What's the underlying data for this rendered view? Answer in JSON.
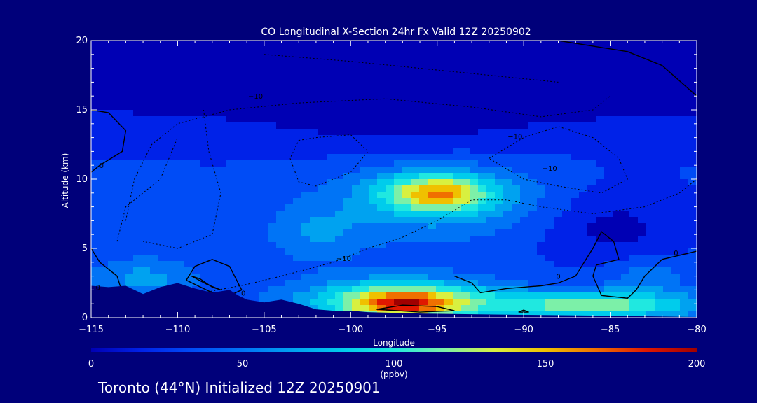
{
  "chart_data": {
    "type": "heatmap",
    "title": "CO Longitudinal X-Section 24hr  Fx Valid 12Z 20250902",
    "xlabel": "Longitude",
    "ylabel": "Altitude (km)",
    "xlim": [
      -115,
      -80
    ],
    "ylim": [
      0,
      20
    ],
    "x_ticks": [
      -115,
      -110,
      -105,
      -100,
      -95,
      -90,
      -85,
      -80
    ],
    "y_ticks": [
      0,
      5,
      10,
      15,
      20
    ],
    "x_tick_labels": [
      "−115",
      "−110",
      "−105",
      "−100",
      "−95",
      "−90",
      "−85",
      "−80"
    ],
    "y_tick_labels": [
      "0",
      "5",
      "10",
      "15",
      "20"
    ],
    "colorbar": {
      "min": 0,
      "max": 200,
      "ticks": [
        0,
        50,
        100,
        150,
        200
      ],
      "tick_labels": [
        "0",
        "50",
        "100",
        "150",
        "200"
      ],
      "unit": "(ppbv)"
    },
    "palette": [
      "#0000b4",
      "#0022e8",
      "#004cf6",
      "#0074f6",
      "#00a2f0",
      "#00ccec",
      "#20e8e0",
      "#7cf0a8",
      "#d8f040",
      "#f0c000",
      "#f07000",
      "#e01800",
      "#a00000"
    ],
    "field_blobs": [
      {
        "lon": -95,
        "alt": 9.0,
        "value": 95,
        "rx": 3.0,
        "ry": 1.3
      },
      {
        "lon": -95,
        "alt": 8.5,
        "value": 45,
        "rx": 6.5,
        "ry": 2.8
      },
      {
        "lon": -102,
        "alt": 6.0,
        "value": 28,
        "rx": 3.0,
        "ry": 2.0
      },
      {
        "lon": -97,
        "alt": 1.2,
        "value": 100,
        "rx": 5.5,
        "ry": 1.6
      },
      {
        "lon": -97,
        "alt": 1.0,
        "value": 65,
        "rx": 2.8,
        "ry": 0.9
      },
      {
        "lon": -86,
        "alt": 0.9,
        "value": 85,
        "rx": 6.0,
        "ry": 1.0
      },
      {
        "lon": -112,
        "alt": 2.8,
        "value": 35,
        "rx": 3.0,
        "ry": 1.6
      },
      {
        "lon": -83,
        "alt": 3.0,
        "value": 25,
        "rx": 2.5,
        "ry": 1.5
      },
      {
        "lon": -95,
        "alt": 17.0,
        "value": -35,
        "rx": 25.0,
        "ry": 2.5
      },
      {
        "lon": -85,
        "alt": 6.5,
        "value": -25,
        "rx": 4.0,
        "ry": 3.0
      },
      {
        "lon": -97,
        "alt": 13.5,
        "value": -15,
        "rx": 9.0,
        "ry": 2.0
      }
    ],
    "field_base_profile": [
      [
        0,
        35
      ],
      [
        2,
        30
      ],
      [
        6,
        27
      ],
      [
        10,
        27
      ],
      [
        14,
        22
      ],
      [
        17,
        8
      ],
      [
        20,
        2
      ]
    ],
    "terrain": [
      [
        -115,
        2.3
      ],
      [
        -114,
        2.2
      ],
      [
        -113,
        2.3
      ],
      [
        -112,
        1.7
      ],
      [
        -111,
        2.2
      ],
      [
        -110,
        2.5
      ],
      [
        -109,
        2.1
      ],
      [
        -108,
        1.8
      ],
      [
        -107,
        2.0
      ],
      [
        -106.5,
        1.6
      ],
      [
        -106,
        1.3
      ],
      [
        -105,
        1.1
      ],
      [
        -104,
        1.3
      ],
      [
        -103,
        1.0
      ],
      [
        -102,
        0.6
      ],
      [
        -101,
        0.5
      ],
      [
        -100,
        0.5
      ],
      [
        -99,
        0.4
      ],
      [
        -96,
        0.3
      ],
      [
        -93,
        0.25
      ],
      [
        -90,
        0.2
      ],
      [
        -86,
        0.15
      ],
      [
        -83,
        0.1
      ],
      [
        -80,
        0.05
      ]
    ],
    "contours": [
      {
        "label": "0",
        "dashed": false,
        "points": [
          [
            -115,
            15.0
          ],
          [
            -114,
            14.8
          ],
          [
            -113,
            13.5
          ],
          [
            -113.2,
            12.0
          ],
          [
            -114.5,
            11.0
          ],
          [
            -115,
            10.5
          ]
        ]
      },
      {
        "label": "0",
        "dashed": false,
        "points": [
          [
            -115,
            5.0
          ],
          [
            -114.5,
            4.0
          ],
          [
            -113.5,
            3.0
          ],
          [
            -113.3,
            2.2
          ]
        ]
      },
      {
        "label": "0",
        "dashed": false,
        "points": [
          [
            -109.5,
            2.7
          ],
          [
            -109,
            3.7
          ],
          [
            -108,
            4.2
          ],
          [
            -107,
            3.7
          ],
          [
            -106.3,
            2.0
          ],
          [
            -107,
            1.6
          ],
          [
            -108,
            1.8
          ],
          [
            -109.5,
            2.7
          ]
        ]
      },
      {
        "label": "",
        "dashed": false,
        "points": [
          [
            -109.2,
            3.0
          ],
          [
            -108.7,
            2.8
          ],
          [
            -108,
            2.2
          ],
          [
            -107.5,
            2.0
          ],
          [
            -108.3,
            2.4
          ],
          [
            -109.2,
            3.0
          ]
        ]
      },
      {
        "label": "0",
        "dashed": false,
        "points": [
          [
            -94,
            3.0
          ],
          [
            -93,
            2.5
          ],
          [
            -92.5,
            1.8
          ],
          [
            -91,
            2.1
          ],
          [
            -89,
            2.3
          ],
          [
            -88,
            2.5
          ],
          [
            -87,
            3.0
          ],
          [
            -86.5,
            4.0
          ],
          [
            -86,
            5.0
          ],
          [
            -85.5,
            6.2
          ],
          [
            -84.8,
            5.5
          ],
          [
            -84.5,
            4.2
          ],
          [
            -85.8,
            3.8
          ],
          [
            -86,
            3.0
          ],
          [
            -85.5,
            1.6
          ],
          [
            -84,
            1.4
          ],
          [
            -83.5,
            2.0
          ],
          [
            -83,
            3.0
          ],
          [
            -82,
            4.2
          ],
          [
            -80,
            4.8
          ]
        ]
      },
      {
        "label": "",
        "dashed": false,
        "points": [
          [
            -98.5,
            0.6
          ],
          [
            -97,
            0.9
          ],
          [
            -95,
            0.8
          ],
          [
            -94,
            0.5
          ],
          [
            -96,
            0.4
          ],
          [
            -98.5,
            0.6
          ]
        ]
      },
      {
        "label": "",
        "dashed": false,
        "points": [
          [
            -90.3,
            0.4
          ],
          [
            -90,
            0.55
          ],
          [
            -89.7,
            0.4
          ],
          [
            -90.3,
            0.4
          ]
        ]
      },
      {
        "label": "",
        "dashed": false,
        "points": [
          [
            -88,
            20.0
          ],
          [
            -86,
            19.6
          ],
          [
            -84,
            19.2
          ],
          [
            -82,
            18.2
          ],
          [
            -80,
            16.0
          ]
        ]
      },
      {
        "label": "-10",
        "dashed": true,
        "points": [
          [
            -113,
            7.0
          ],
          [
            -112.5,
            10.0
          ],
          [
            -111.5,
            12.5
          ],
          [
            -110,
            14.0
          ],
          [
            -107,
            15.0
          ],
          [
            -103,
            15.5
          ],
          [
            -98,
            15.8
          ],
          [
            -93,
            15.2
          ],
          [
            -89,
            14.5
          ],
          [
            -86,
            15.0
          ],
          [
            -85,
            16.0
          ]
        ]
      },
      {
        "label": "-10",
        "dashed": true,
        "points": [
          [
            -103,
            12.8
          ],
          [
            -102,
            13.0
          ],
          [
            -100,
            13.2
          ],
          [
            -99,
            12.0
          ],
          [
            -100,
            10.5
          ],
          [
            -102,
            9.5
          ],
          [
            -103,
            9.8
          ],
          [
            -103.5,
            11.5
          ],
          [
            -103,
            12.8
          ]
        ]
      },
      {
        "label": "-10",
        "dashed": true,
        "points": [
          [
            -92,
            11.5
          ],
          [
            -90,
            13.0
          ],
          [
            -88,
            13.8
          ],
          [
            -86,
            13.0
          ],
          [
            -84.5,
            11.5
          ],
          [
            -84,
            10.0
          ],
          [
            -85.5,
            9.0
          ],
          [
            -88,
            9.5
          ],
          [
            -90,
            10.0
          ],
          [
            -92,
            11.5
          ]
        ]
      },
      {
        "label": "-10",
        "dashed": true,
        "points": [
          [
            -108.5,
            1.8
          ],
          [
            -106,
            2.4
          ],
          [
            -104,
            3.0
          ],
          [
            -101,
            4.0
          ],
          [
            -99,
            5.0
          ],
          [
            -97,
            5.8
          ],
          [
            -95,
            7.0
          ],
          [
            -93,
            8.5
          ],
          [
            -91,
            8.5
          ],
          [
            -89,
            8.0
          ],
          [
            -86,
            7.5
          ],
          [
            -83,
            8.0
          ],
          [
            -81,
            9.0
          ],
          [
            -80,
            10.0
          ]
        ]
      },
      {
        "label": "",
        "dashed": true,
        "points": [
          [
            -113.5,
            5.5
          ],
          [
            -113,
            8.0
          ],
          [
            -111,
            10.0
          ],
          [
            -110,
            13.0
          ]
        ]
      },
      {
        "label": "",
        "dashed": true,
        "points": [
          [
            -108.5,
            15.0
          ],
          [
            -108.2,
            12.0
          ],
          [
            -107.5,
            9.0
          ],
          [
            -108,
            6.0
          ],
          [
            -110,
            5.0
          ],
          [
            -112,
            5.5
          ]
        ]
      },
      {
        "label": "",
        "dashed": true,
        "points": [
          [
            -105,
            19.0
          ],
          [
            -100,
            18.5
          ],
          [
            -96,
            18.0
          ],
          [
            -92,
            17.5
          ],
          [
            -88,
            17.0
          ]
        ]
      }
    ],
    "contour_labels": [
      {
        "text": "0",
        "lon": -114.4,
        "alt": 11.0
      },
      {
        "text": "0",
        "lon": -114.6,
        "alt": 2.2
      },
      {
        "text": "0",
        "lon": -106.2,
        "alt": 1.8
      },
      {
        "text": "0",
        "lon": -88.0,
        "alt": 3.0
      },
      {
        "text": "0",
        "lon": -81.2,
        "alt": 4.7
      },
      {
        "text": "−10",
        "lon": -105.5,
        "alt": 16.0
      },
      {
        "text": "−10",
        "lon": -90.5,
        "alt": 13.1
      },
      {
        "text": "−10",
        "lon": -88.5,
        "alt": 10.8
      },
      {
        "text": "−10",
        "lon": -100.4,
        "alt": 4.3
      }
    ]
  },
  "footer": {
    "text": "Toronto (44°N) Initialized 12Z 20250901"
  }
}
